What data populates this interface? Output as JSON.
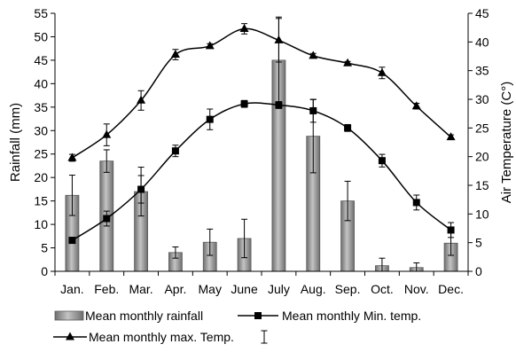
{
  "chart_data": {
    "type": "bar+line",
    "categories": [
      "Jan.",
      "Feb.",
      "Mar.",
      "Apr.",
      "May",
      "June",
      "July",
      "Aug.",
      "Sep.",
      "Oct.",
      "Nov.",
      "Dec."
    ],
    "ylabel_left": "Rainfall (mm)",
    "ylabel_right": "Air Temperature (C°)",
    "ylim_left": [
      0,
      55
    ],
    "yticks_left": [
      0,
      5,
      10,
      15,
      20,
      25,
      30,
      35,
      40,
      45,
      50,
      55
    ],
    "ylim_right": [
      0,
      45
    ],
    "yticks_right": [
      0,
      5,
      10,
      15,
      20,
      25,
      30,
      35,
      40,
      45
    ],
    "grid": false,
    "legend_position": "bottom",
    "series": [
      {
        "name": "Mean monthly rainfall",
        "kind": "bar",
        "axis": "left",
        "values": [
          16.2,
          23.5,
          17.0,
          4.0,
          6.2,
          7.0,
          45.0,
          28.8,
          15.0,
          1.2,
          0.8,
          6.0
        ],
        "error": [
          4.3,
          2.4,
          5.2,
          1.2,
          2.8,
          4.1,
          9.2,
          7.8,
          4.2,
          1.6,
          1.0,
          2.6
        ],
        "color": "#8c8c8c"
      },
      {
        "name": "Mean monthly Min. temp.",
        "kind": "line",
        "marker": "square",
        "axis": "right",
        "values": [
          5.4,
          9.2,
          14.3,
          21.0,
          26.5,
          29.2,
          29.0,
          28.0,
          25.0,
          19.3,
          12.0,
          7.2
        ],
        "error": [
          0.5,
          1.3,
          2.4,
          1.0,
          1.8,
          0.6,
          0.6,
          2.0,
          0.6,
          1.1,
          1.3,
          1.3
        ],
        "color": "#000000"
      },
      {
        "name": "Mean monthly max. Temp.",
        "kind": "line",
        "marker": "triangle",
        "axis": "right",
        "values": [
          19.8,
          23.8,
          29.8,
          37.8,
          39.3,
          42.3,
          40.3,
          37.6,
          36.3,
          34.6,
          28.8,
          23.4
        ],
        "error": [
          0.6,
          1.9,
          1.7,
          0.9,
          0.4,
          0.9,
          3.8,
          0.4,
          0.3,
          1.0,
          0.5,
          0.4
        ],
        "color": "#000000"
      }
    ]
  }
}
